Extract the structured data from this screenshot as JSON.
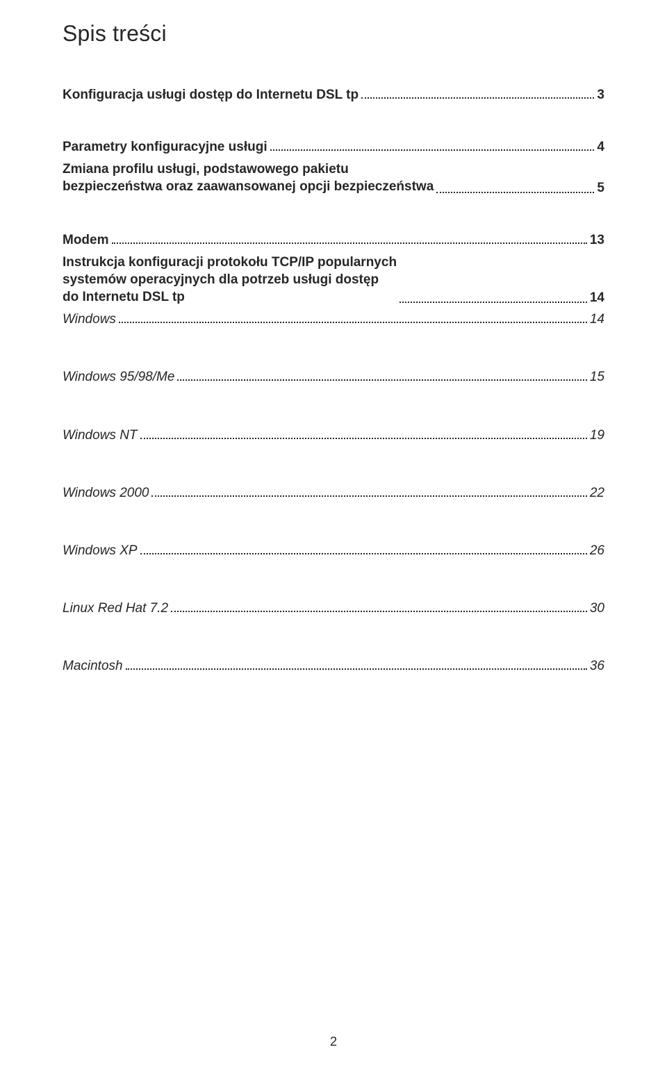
{
  "title": "Spis treści",
  "entries": [
    {
      "label": "Konfiguracja usługi dostęp do Internetu DSL tp",
      "page": "3",
      "style": "bold",
      "gap_after": "md"
    },
    {
      "label": "Parametry konfiguracyjne usługi",
      "page": "4",
      "style": "bold",
      "gap_after": "sm"
    },
    {
      "label": "Zmiana profilu usługi, podstawowego pakietu\nbezpieczeństwa oraz zaawansowanej opcji bezpieczeństwa",
      "page": "5",
      "style": "bold",
      "multiline": true,
      "gap_after": "md"
    },
    {
      "label": "Modem",
      "page": "13",
      "style": "bold",
      "gap_after": "sm"
    },
    {
      "label": "Instrukcja konfiguracji protokołu TCP/IP popularnych\nsystemów operacyjnych dla potrzeb usługi dostęp\ndo Internetu DSL tp",
      "page": "14",
      "style": "bold",
      "multiline": true,
      "gap_after": "sm"
    },
    {
      "label": "Windows",
      "page": "14",
      "style": "italic",
      "gap_after": "lg"
    },
    {
      "label": "Windows 95/98/Me",
      "page": "15",
      "style": "italic",
      "gap_after": "lg"
    },
    {
      "label": "Windows NT",
      "page": "19",
      "style": "italic",
      "gap_after": "lg"
    },
    {
      "label": "Windows 2000",
      "page": "22",
      "style": "italic",
      "gap_after": "lg"
    },
    {
      "label": "Windows XP",
      "page": "26",
      "style": "italic",
      "gap_after": "lg"
    },
    {
      "label": "Linux Red Hat 7.2",
      "page": "30",
      "style": "italic",
      "gap_after": "lg"
    },
    {
      "label": "Macintosh",
      "page": "36",
      "style": "italic",
      "gap_after": ""
    }
  ],
  "page_number": "2",
  "colors": {
    "text": "#262626",
    "background": "#ffffff"
  },
  "fontsize": {
    "title": 32,
    "entry": 19,
    "pagenum": 18
  }
}
